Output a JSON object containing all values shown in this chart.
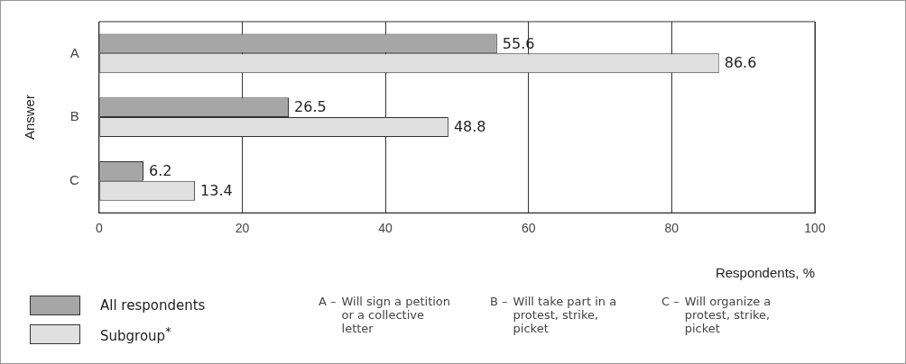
{
  "chart_data": {
    "type": "bar",
    "orientation": "horizontal",
    "xlabel": "Respondents, %",
    "ylabel": "Answer",
    "categories": [
      "A",
      "B",
      "C"
    ],
    "series": [
      {
        "name": "All respondents",
        "color": "#a6a6a6",
        "values": [
          55.6,
          26.5,
          6.2
        ]
      },
      {
        "name": "Subgroup$^{*}$",
        "color": "#e0e0e0",
        "values": [
          86.6,
          48.8,
          13.4
        ]
      }
    ],
    "xlim": [
      0,
      100
    ],
    "xticks": [
      0,
      20,
      40,
      60,
      80,
      100
    ],
    "grid": "x",
    "data_labels": true,
    "legend": "bottom left",
    "annotations": [
      "A – Will sign a petition or a collective letter",
      "B – Will take part in a protest, strike, picket",
      "C – Will organize a protest, strike, picket"
    ]
  }
}
